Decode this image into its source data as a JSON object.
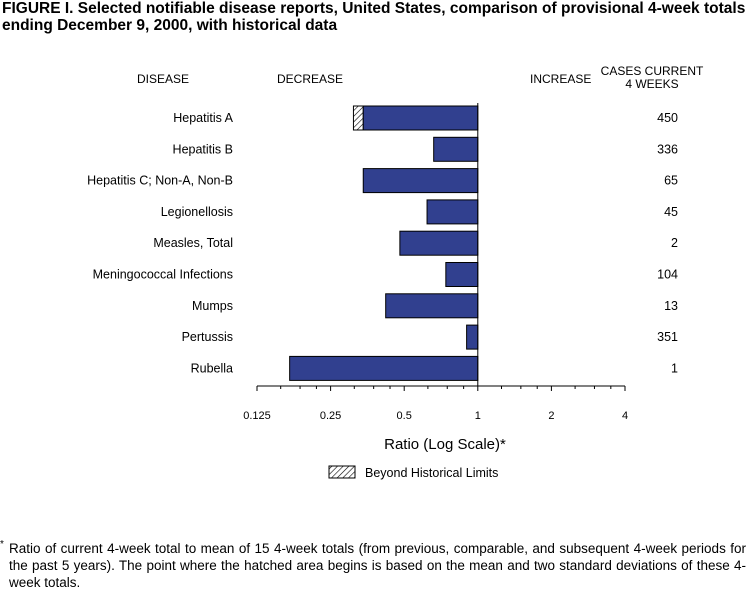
{
  "title": "FIGURE I.  Selected notifiable disease reports, United States, comparison of provisional 4-week totals ending December 9, 2000, with historical data",
  "headers": {
    "disease": "DISEASE",
    "decrease": "DECREASE",
    "increase": "INCREASE",
    "cases_line1": "CASES CURRENT",
    "cases_line2": "4 WEEKS"
  },
  "chart_data": {
    "type": "bar",
    "orientation": "horizontal",
    "scale": "log2",
    "xlabel": "Ratio (Log Scale)*",
    "xlim": [
      0.125,
      4
    ],
    "ticks": [
      0.125,
      0.25,
      0.5,
      1,
      2,
      4
    ],
    "tick_labels": [
      "0.125",
      "0.25",
      "0.5",
      "1",
      "2",
      "4"
    ],
    "baseline": 1,
    "categories": [
      "Hepatitis A",
      "Hepatitis B",
      "Hepatitis C; Non-A, Non-B",
      "Legionellosis",
      "Measles, Total",
      "Meningococcal Infections",
      "Mumps",
      "Pertussis",
      "Rubella"
    ],
    "values": [
      0.31,
      0.66,
      0.34,
      0.62,
      0.48,
      0.74,
      0.42,
      0.9,
      0.17
    ],
    "historical_limit": [
      0.34,
      null,
      null,
      null,
      null,
      null,
      null,
      null,
      null
    ],
    "cases": [
      "450",
      "336",
      "65",
      "45",
      "2",
      "104",
      "13",
      "351",
      "1"
    ],
    "legend": "Beyond Historical Limits",
    "colors": {
      "bar": "#31408f",
      "outline": "#000000"
    }
  },
  "footnote": {
    "mark": "*",
    "text": "Ratio of current 4-week total to mean of 15 4-week totals (from previous, comparable, and subsequent 4-week periods for the past 5 years). The point where the hatched area begins is based on the mean and two standard deviations of these 4-week totals."
  }
}
